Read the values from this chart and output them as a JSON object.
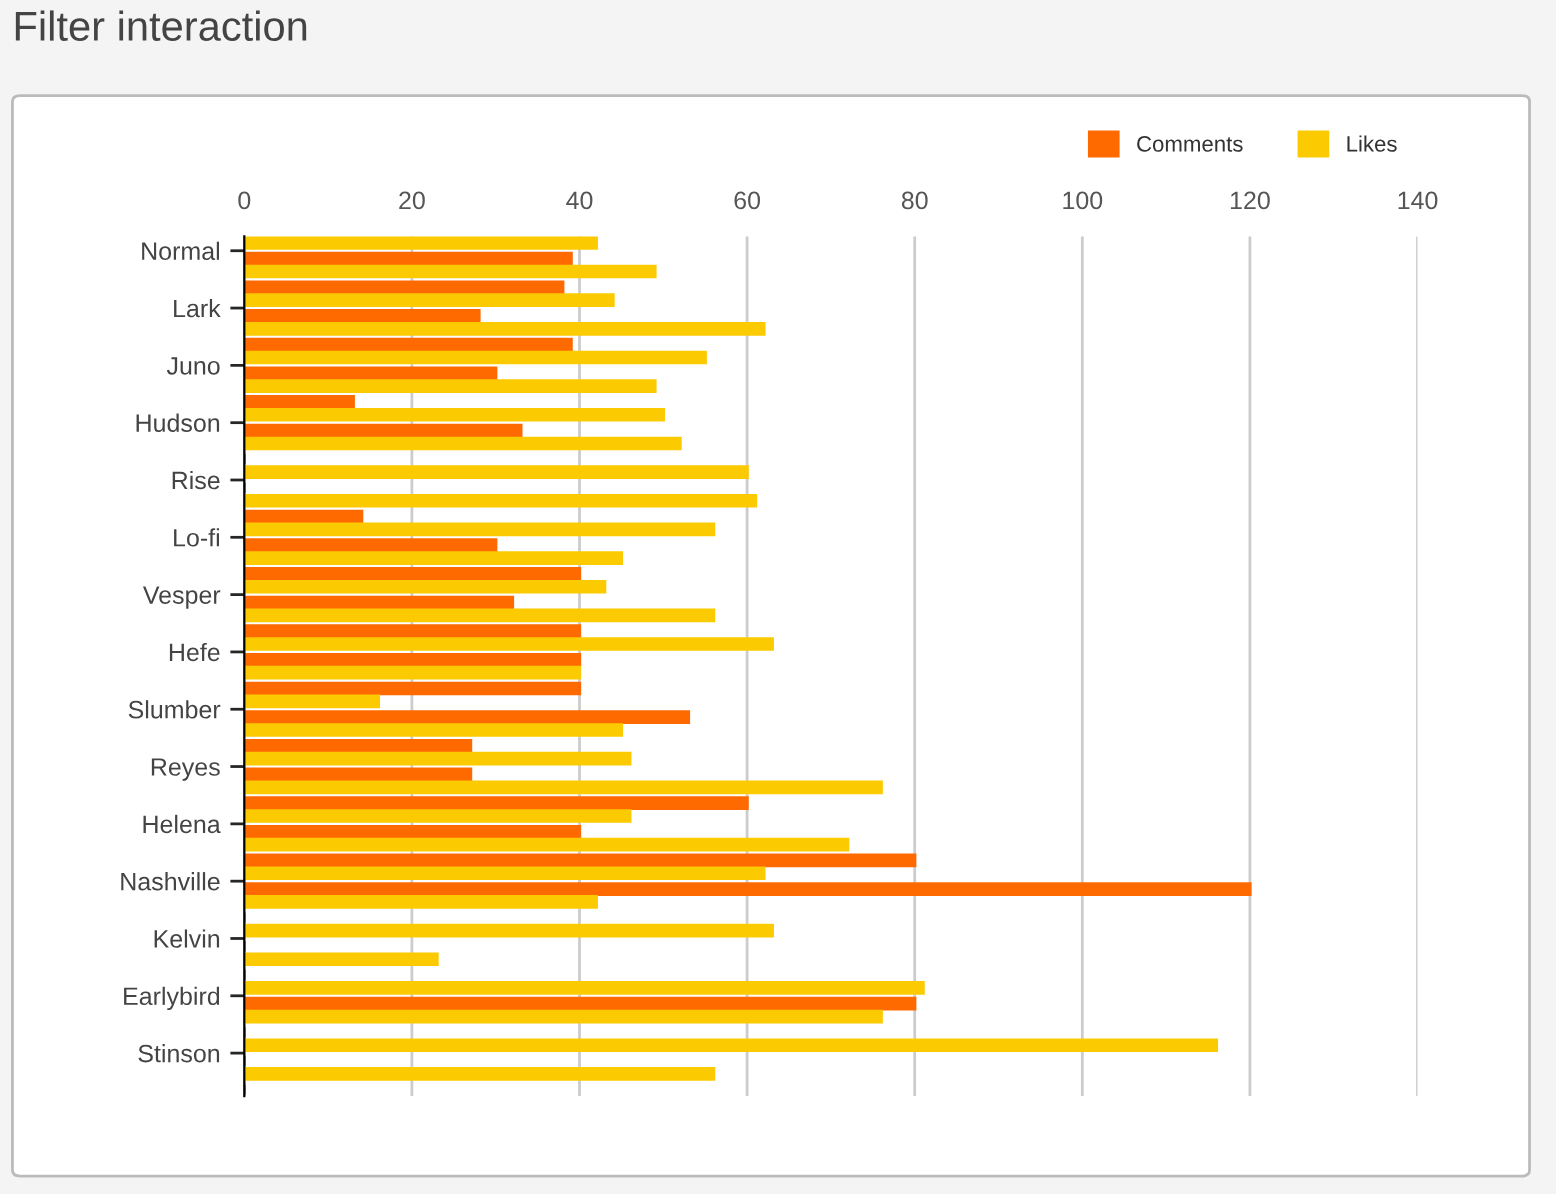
{
  "chart_data": {
    "type": "bar",
    "orientation": "horizontal",
    "title": "Filter interaction",
    "categories": [
      "Normal",
      null,
      "Lark",
      null,
      "Juno",
      null,
      "Hudson",
      null,
      "Rise",
      null,
      "Lo-fi",
      null,
      "Vesper",
      null,
      "Hefe",
      null,
      "Slumber",
      null,
      "Reyes",
      null,
      "Helena",
      null,
      "Nashville",
      null,
      "Kelvin",
      null,
      "Earlybird",
      null,
      "Stinson",
      null
    ],
    "series": [
      {
        "name": "Comments",
        "color": "#ff6a00",
        "values": [
          39,
          38,
          28,
          39,
          30,
          13,
          33,
          0,
          0,
          14,
          30,
          40,
          32,
          40,
          40,
          40,
          53,
          27,
          27,
          60,
          40,
          80,
          120,
          0,
          0,
          0,
          80,
          0,
          0,
          0
        ]
      },
      {
        "name": "Likes",
        "color": "#fcca00",
        "values": [
          42,
          49,
          44,
          62,
          55,
          49,
          50,
          52,
          60,
          61,
          56,
          45,
          43,
          56,
          63,
          40,
          16,
          45,
          46,
          76,
          46,
          72,
          62,
          42,
          63,
          23,
          81,
          76,
          116,
          56
        ]
      }
    ],
    "xlim": [
      0,
      140
    ],
    "xticks": [
      0,
      20,
      40,
      60,
      80,
      100,
      120,
      140
    ],
    "grid": "x",
    "legend": "top right"
  }
}
